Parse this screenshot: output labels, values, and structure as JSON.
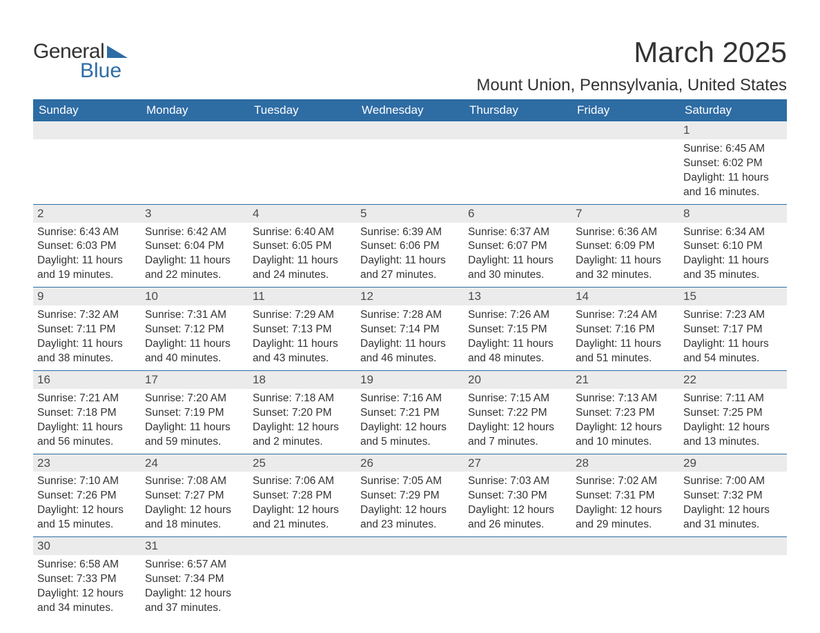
{
  "logo": {
    "general": "General",
    "blue": "Blue"
  },
  "header": {
    "month_title": "March 2025",
    "location": "Mount Union, Pennsylvania, United States"
  },
  "colors": {
    "header_bg": "#2e6ca4",
    "header_fg": "#ffffff",
    "daynum_bg": "#ebebeb",
    "row_divider": "#2e6ca4",
    "text": "#333333",
    "background": "#ffffff"
  },
  "calendar": {
    "day_labels": [
      "Sunday",
      "Monday",
      "Tuesday",
      "Wednesday",
      "Thursday",
      "Friday",
      "Saturday"
    ],
    "weeks": [
      [
        null,
        null,
        null,
        null,
        null,
        null,
        {
          "n": "1",
          "sunrise": "Sunrise: 6:45 AM",
          "sunset": "Sunset: 6:02 PM",
          "dl1": "Daylight: 11 hours",
          "dl2": "and 16 minutes."
        }
      ],
      [
        {
          "n": "2",
          "sunrise": "Sunrise: 6:43 AM",
          "sunset": "Sunset: 6:03 PM",
          "dl1": "Daylight: 11 hours",
          "dl2": "and 19 minutes."
        },
        {
          "n": "3",
          "sunrise": "Sunrise: 6:42 AM",
          "sunset": "Sunset: 6:04 PM",
          "dl1": "Daylight: 11 hours",
          "dl2": "and 22 minutes."
        },
        {
          "n": "4",
          "sunrise": "Sunrise: 6:40 AM",
          "sunset": "Sunset: 6:05 PM",
          "dl1": "Daylight: 11 hours",
          "dl2": "and 24 minutes."
        },
        {
          "n": "5",
          "sunrise": "Sunrise: 6:39 AM",
          "sunset": "Sunset: 6:06 PM",
          "dl1": "Daylight: 11 hours",
          "dl2": "and 27 minutes."
        },
        {
          "n": "6",
          "sunrise": "Sunrise: 6:37 AM",
          "sunset": "Sunset: 6:07 PM",
          "dl1": "Daylight: 11 hours",
          "dl2": "and 30 minutes."
        },
        {
          "n": "7",
          "sunrise": "Sunrise: 6:36 AM",
          "sunset": "Sunset: 6:09 PM",
          "dl1": "Daylight: 11 hours",
          "dl2": "and 32 minutes."
        },
        {
          "n": "8",
          "sunrise": "Sunrise: 6:34 AM",
          "sunset": "Sunset: 6:10 PM",
          "dl1": "Daylight: 11 hours",
          "dl2": "and 35 minutes."
        }
      ],
      [
        {
          "n": "9",
          "sunrise": "Sunrise: 7:32 AM",
          "sunset": "Sunset: 7:11 PM",
          "dl1": "Daylight: 11 hours",
          "dl2": "and 38 minutes."
        },
        {
          "n": "10",
          "sunrise": "Sunrise: 7:31 AM",
          "sunset": "Sunset: 7:12 PM",
          "dl1": "Daylight: 11 hours",
          "dl2": "and 40 minutes."
        },
        {
          "n": "11",
          "sunrise": "Sunrise: 7:29 AM",
          "sunset": "Sunset: 7:13 PM",
          "dl1": "Daylight: 11 hours",
          "dl2": "and 43 minutes."
        },
        {
          "n": "12",
          "sunrise": "Sunrise: 7:28 AM",
          "sunset": "Sunset: 7:14 PM",
          "dl1": "Daylight: 11 hours",
          "dl2": "and 46 minutes."
        },
        {
          "n": "13",
          "sunrise": "Sunrise: 7:26 AM",
          "sunset": "Sunset: 7:15 PM",
          "dl1": "Daylight: 11 hours",
          "dl2": "and 48 minutes."
        },
        {
          "n": "14",
          "sunrise": "Sunrise: 7:24 AM",
          "sunset": "Sunset: 7:16 PM",
          "dl1": "Daylight: 11 hours",
          "dl2": "and 51 minutes."
        },
        {
          "n": "15",
          "sunrise": "Sunrise: 7:23 AM",
          "sunset": "Sunset: 7:17 PM",
          "dl1": "Daylight: 11 hours",
          "dl2": "and 54 minutes."
        }
      ],
      [
        {
          "n": "16",
          "sunrise": "Sunrise: 7:21 AM",
          "sunset": "Sunset: 7:18 PM",
          "dl1": "Daylight: 11 hours",
          "dl2": "and 56 minutes."
        },
        {
          "n": "17",
          "sunrise": "Sunrise: 7:20 AM",
          "sunset": "Sunset: 7:19 PM",
          "dl1": "Daylight: 11 hours",
          "dl2": "and 59 minutes."
        },
        {
          "n": "18",
          "sunrise": "Sunrise: 7:18 AM",
          "sunset": "Sunset: 7:20 PM",
          "dl1": "Daylight: 12 hours",
          "dl2": "and 2 minutes."
        },
        {
          "n": "19",
          "sunrise": "Sunrise: 7:16 AM",
          "sunset": "Sunset: 7:21 PM",
          "dl1": "Daylight: 12 hours",
          "dl2": "and 5 minutes."
        },
        {
          "n": "20",
          "sunrise": "Sunrise: 7:15 AM",
          "sunset": "Sunset: 7:22 PM",
          "dl1": "Daylight: 12 hours",
          "dl2": "and 7 minutes."
        },
        {
          "n": "21",
          "sunrise": "Sunrise: 7:13 AM",
          "sunset": "Sunset: 7:23 PM",
          "dl1": "Daylight: 12 hours",
          "dl2": "and 10 minutes."
        },
        {
          "n": "22",
          "sunrise": "Sunrise: 7:11 AM",
          "sunset": "Sunset: 7:25 PM",
          "dl1": "Daylight: 12 hours",
          "dl2": "and 13 minutes."
        }
      ],
      [
        {
          "n": "23",
          "sunrise": "Sunrise: 7:10 AM",
          "sunset": "Sunset: 7:26 PM",
          "dl1": "Daylight: 12 hours",
          "dl2": "and 15 minutes."
        },
        {
          "n": "24",
          "sunrise": "Sunrise: 7:08 AM",
          "sunset": "Sunset: 7:27 PM",
          "dl1": "Daylight: 12 hours",
          "dl2": "and 18 minutes."
        },
        {
          "n": "25",
          "sunrise": "Sunrise: 7:06 AM",
          "sunset": "Sunset: 7:28 PM",
          "dl1": "Daylight: 12 hours",
          "dl2": "and 21 minutes."
        },
        {
          "n": "26",
          "sunrise": "Sunrise: 7:05 AM",
          "sunset": "Sunset: 7:29 PM",
          "dl1": "Daylight: 12 hours",
          "dl2": "and 23 minutes."
        },
        {
          "n": "27",
          "sunrise": "Sunrise: 7:03 AM",
          "sunset": "Sunset: 7:30 PM",
          "dl1": "Daylight: 12 hours",
          "dl2": "and 26 minutes."
        },
        {
          "n": "28",
          "sunrise": "Sunrise: 7:02 AM",
          "sunset": "Sunset: 7:31 PM",
          "dl1": "Daylight: 12 hours",
          "dl2": "and 29 minutes."
        },
        {
          "n": "29",
          "sunrise": "Sunrise: 7:00 AM",
          "sunset": "Sunset: 7:32 PM",
          "dl1": "Daylight: 12 hours",
          "dl2": "and 31 minutes."
        }
      ],
      [
        {
          "n": "30",
          "sunrise": "Sunrise: 6:58 AM",
          "sunset": "Sunset: 7:33 PM",
          "dl1": "Daylight: 12 hours",
          "dl2": "and 34 minutes."
        },
        {
          "n": "31",
          "sunrise": "Sunrise: 6:57 AM",
          "sunset": "Sunset: 7:34 PM",
          "dl1": "Daylight: 12 hours",
          "dl2": "and 37 minutes."
        },
        null,
        null,
        null,
        null,
        null
      ]
    ]
  }
}
